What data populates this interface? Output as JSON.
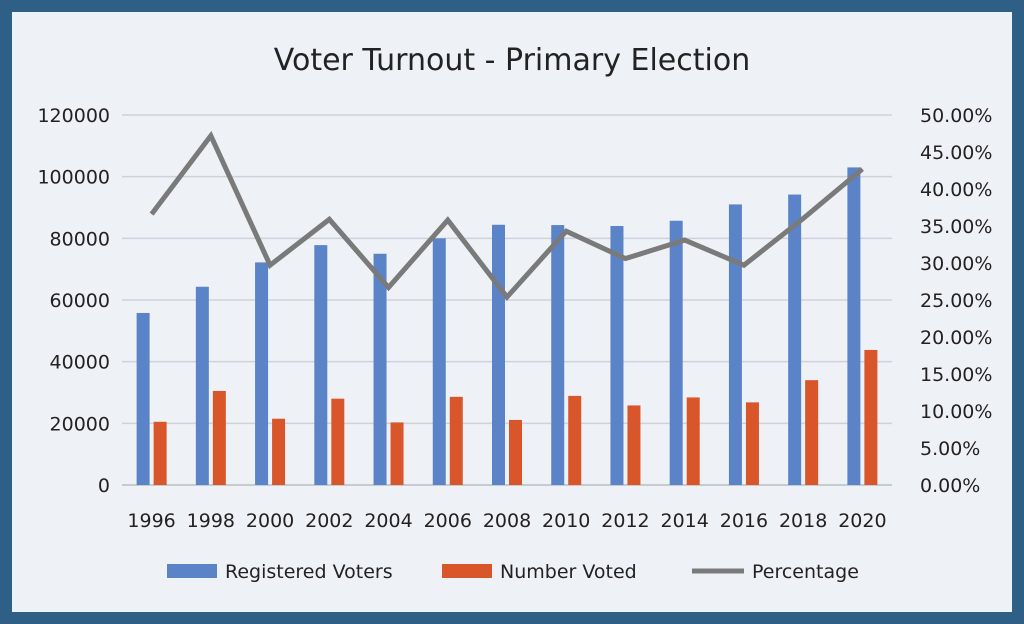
{
  "chart_data": {
    "type": "bar",
    "title": "Voter Turnout - Primary Election",
    "categories": [
      "1996",
      "1998",
      "2000",
      "2002",
      "2004",
      "2006",
      "2008",
      "2010",
      "2012",
      "2014",
      "2016",
      "2018",
      "2020"
    ],
    "series": [
      {
        "name": "Registered Voters",
        "type": "bar",
        "axis": "left",
        "color": "#5b83c8",
        "values": [
          55800,
          64300,
          72200,
          77800,
          75000,
          80000,
          84400,
          84300,
          84000,
          85700,
          91000,
          94200,
          103000
        ]
      },
      {
        "name": "Number Voted",
        "type": "bar",
        "axis": "left",
        "color": "#d9552a",
        "values": [
          20500,
          30500,
          21500,
          28000,
          20300,
          28600,
          21100,
          28900,
          25800,
          28400,
          26800,
          34000,
          43800
        ]
      },
      {
        "name": "Percentage",
        "type": "line",
        "axis": "right",
        "color": "#7a7a7a",
        "values": [
          0.366,
          0.472,
          0.297,
          0.359,
          0.267,
          0.358,
          0.254,
          0.343,
          0.306,
          0.331,
          0.297,
          0.36,
          0.427
        ]
      }
    ],
    "ylim": [
      0,
      120000
    ],
    "y_ticks": [
      "0",
      "20000",
      "40000",
      "60000",
      "80000",
      "100000",
      "120000"
    ],
    "y2lim": [
      0,
      0.5
    ],
    "y2_ticks": [
      "0.00%",
      "5.00%",
      "10.00%",
      "15.00%",
      "20.00%",
      "25.00%",
      "30.00%",
      "35.00%",
      "40.00%",
      "45.00%",
      "50.00%"
    ],
    "grid": true,
    "legend": "bottom"
  }
}
